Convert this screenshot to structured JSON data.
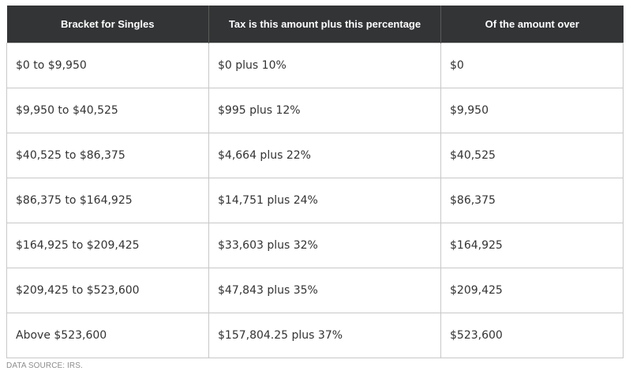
{
  "table": {
    "headers": [
      "Bracket for Singles",
      "Tax is this amount plus this percentage",
      "Of the amount over"
    ],
    "rows": [
      [
        "$0 to $9,950",
        "$0 plus 10%",
        "$0"
      ],
      [
        "$9,950 to $40,525",
        "$995 plus 12%",
        "$9,950"
      ],
      [
        "$40,525 to $86,375",
        "$4,664 plus 22%",
        "$40,525"
      ],
      [
        "$86,375 to $164,925",
        "$14,751 plus 24%",
        "$86,375"
      ],
      [
        "$164,925 to $209,425",
        "$33,603 plus 32%",
        "$164,925"
      ],
      [
        "$209,425 to $523,600",
        "$47,843 plus 35%",
        "$209,425"
      ],
      [
        "Above $523,600",
        "$157,804.25 plus 37%",
        "$523,600"
      ]
    ]
  },
  "source": "DATA SOURCE: IRS.",
  "colors": {
    "header_bg": "#333436",
    "header_text": "#ffffff",
    "cell_text": "#333333",
    "border": "#c8c8c8",
    "source_text": "#8c8c8c"
  }
}
